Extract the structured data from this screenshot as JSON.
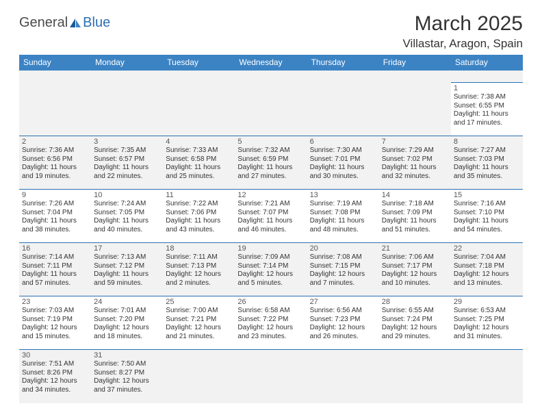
{
  "logo": {
    "text1": "General",
    "text2": "Blue"
  },
  "title": "March 2025",
  "location": "Villastar, Aragon, Spain",
  "colors": {
    "header_bg": "#3c83c4",
    "header_text": "#ffffff",
    "cell_bg_grey": "#f2f2f2",
    "cell_bg_white": "#ffffff",
    "border": "#2b6fb0",
    "logo_blue": "#2b6fb0",
    "text_dark": "#333333"
  },
  "day_headers": [
    "Sunday",
    "Monday",
    "Tuesday",
    "Wednesday",
    "Thursday",
    "Friday",
    "Saturday"
  ],
  "weeks": [
    {
      "bg": "white",
      "cells": [
        null,
        null,
        null,
        null,
        null,
        null,
        {
          "n": "1",
          "sr": "Sunrise: 7:38 AM",
          "ss": "Sunset: 6:55 PM",
          "d1": "Daylight: 11 hours",
          "d2": "and 17 minutes."
        }
      ]
    },
    {
      "bg": "grey",
      "cells": [
        {
          "n": "2",
          "sr": "Sunrise: 7:36 AM",
          "ss": "Sunset: 6:56 PM",
          "d1": "Daylight: 11 hours",
          "d2": "and 19 minutes."
        },
        {
          "n": "3",
          "sr": "Sunrise: 7:35 AM",
          "ss": "Sunset: 6:57 PM",
          "d1": "Daylight: 11 hours",
          "d2": "and 22 minutes."
        },
        {
          "n": "4",
          "sr": "Sunrise: 7:33 AM",
          "ss": "Sunset: 6:58 PM",
          "d1": "Daylight: 11 hours",
          "d2": "and 25 minutes."
        },
        {
          "n": "5",
          "sr": "Sunrise: 7:32 AM",
          "ss": "Sunset: 6:59 PM",
          "d1": "Daylight: 11 hours",
          "d2": "and 27 minutes."
        },
        {
          "n": "6",
          "sr": "Sunrise: 7:30 AM",
          "ss": "Sunset: 7:01 PM",
          "d1": "Daylight: 11 hours",
          "d2": "and 30 minutes."
        },
        {
          "n": "7",
          "sr": "Sunrise: 7:29 AM",
          "ss": "Sunset: 7:02 PM",
          "d1": "Daylight: 11 hours",
          "d2": "and 32 minutes."
        },
        {
          "n": "8",
          "sr": "Sunrise: 7:27 AM",
          "ss": "Sunset: 7:03 PM",
          "d1": "Daylight: 11 hours",
          "d2": "and 35 minutes."
        }
      ]
    },
    {
      "bg": "white",
      "cells": [
        {
          "n": "9",
          "sr": "Sunrise: 7:26 AM",
          "ss": "Sunset: 7:04 PM",
          "d1": "Daylight: 11 hours",
          "d2": "and 38 minutes."
        },
        {
          "n": "10",
          "sr": "Sunrise: 7:24 AM",
          "ss": "Sunset: 7:05 PM",
          "d1": "Daylight: 11 hours",
          "d2": "and 40 minutes."
        },
        {
          "n": "11",
          "sr": "Sunrise: 7:22 AM",
          "ss": "Sunset: 7:06 PM",
          "d1": "Daylight: 11 hours",
          "d2": "and 43 minutes."
        },
        {
          "n": "12",
          "sr": "Sunrise: 7:21 AM",
          "ss": "Sunset: 7:07 PM",
          "d1": "Daylight: 11 hours",
          "d2": "and 46 minutes."
        },
        {
          "n": "13",
          "sr": "Sunrise: 7:19 AM",
          "ss": "Sunset: 7:08 PM",
          "d1": "Daylight: 11 hours",
          "d2": "and 48 minutes."
        },
        {
          "n": "14",
          "sr": "Sunrise: 7:18 AM",
          "ss": "Sunset: 7:09 PM",
          "d1": "Daylight: 11 hours",
          "d2": "and 51 minutes."
        },
        {
          "n": "15",
          "sr": "Sunrise: 7:16 AM",
          "ss": "Sunset: 7:10 PM",
          "d1": "Daylight: 11 hours",
          "d2": "and 54 minutes."
        }
      ]
    },
    {
      "bg": "grey",
      "cells": [
        {
          "n": "16",
          "sr": "Sunrise: 7:14 AM",
          "ss": "Sunset: 7:11 PM",
          "d1": "Daylight: 11 hours",
          "d2": "and 57 minutes."
        },
        {
          "n": "17",
          "sr": "Sunrise: 7:13 AM",
          "ss": "Sunset: 7:12 PM",
          "d1": "Daylight: 11 hours",
          "d2": "and 59 minutes."
        },
        {
          "n": "18",
          "sr": "Sunrise: 7:11 AM",
          "ss": "Sunset: 7:13 PM",
          "d1": "Daylight: 12 hours",
          "d2": "and 2 minutes."
        },
        {
          "n": "19",
          "sr": "Sunrise: 7:09 AM",
          "ss": "Sunset: 7:14 PM",
          "d1": "Daylight: 12 hours",
          "d2": "and 5 minutes."
        },
        {
          "n": "20",
          "sr": "Sunrise: 7:08 AM",
          "ss": "Sunset: 7:15 PM",
          "d1": "Daylight: 12 hours",
          "d2": "and 7 minutes."
        },
        {
          "n": "21",
          "sr": "Sunrise: 7:06 AM",
          "ss": "Sunset: 7:17 PM",
          "d1": "Daylight: 12 hours",
          "d2": "and 10 minutes."
        },
        {
          "n": "22",
          "sr": "Sunrise: 7:04 AM",
          "ss": "Sunset: 7:18 PM",
          "d1": "Daylight: 12 hours",
          "d2": "and 13 minutes."
        }
      ]
    },
    {
      "bg": "white",
      "cells": [
        {
          "n": "23",
          "sr": "Sunrise: 7:03 AM",
          "ss": "Sunset: 7:19 PM",
          "d1": "Daylight: 12 hours",
          "d2": "and 15 minutes."
        },
        {
          "n": "24",
          "sr": "Sunrise: 7:01 AM",
          "ss": "Sunset: 7:20 PM",
          "d1": "Daylight: 12 hours",
          "d2": "and 18 minutes."
        },
        {
          "n": "25",
          "sr": "Sunrise: 7:00 AM",
          "ss": "Sunset: 7:21 PM",
          "d1": "Daylight: 12 hours",
          "d2": "and 21 minutes."
        },
        {
          "n": "26",
          "sr": "Sunrise: 6:58 AM",
          "ss": "Sunset: 7:22 PM",
          "d1": "Daylight: 12 hours",
          "d2": "and 23 minutes."
        },
        {
          "n": "27",
          "sr": "Sunrise: 6:56 AM",
          "ss": "Sunset: 7:23 PM",
          "d1": "Daylight: 12 hours",
          "d2": "and 26 minutes."
        },
        {
          "n": "28",
          "sr": "Sunrise: 6:55 AM",
          "ss": "Sunset: 7:24 PM",
          "d1": "Daylight: 12 hours",
          "d2": "and 29 minutes."
        },
        {
          "n": "29",
          "sr": "Sunrise: 6:53 AM",
          "ss": "Sunset: 7:25 PM",
          "d1": "Daylight: 12 hours",
          "d2": "and 31 minutes."
        }
      ]
    },
    {
      "bg": "grey",
      "cells": [
        {
          "n": "30",
          "sr": "Sunrise: 7:51 AM",
          "ss": "Sunset: 8:26 PM",
          "d1": "Daylight: 12 hours",
          "d2": "and 34 minutes."
        },
        {
          "n": "31",
          "sr": "Sunrise: 7:50 AM",
          "ss": "Sunset: 8:27 PM",
          "d1": "Daylight: 12 hours",
          "d2": "and 37 minutes."
        },
        null,
        null,
        null,
        null,
        null
      ]
    }
  ]
}
